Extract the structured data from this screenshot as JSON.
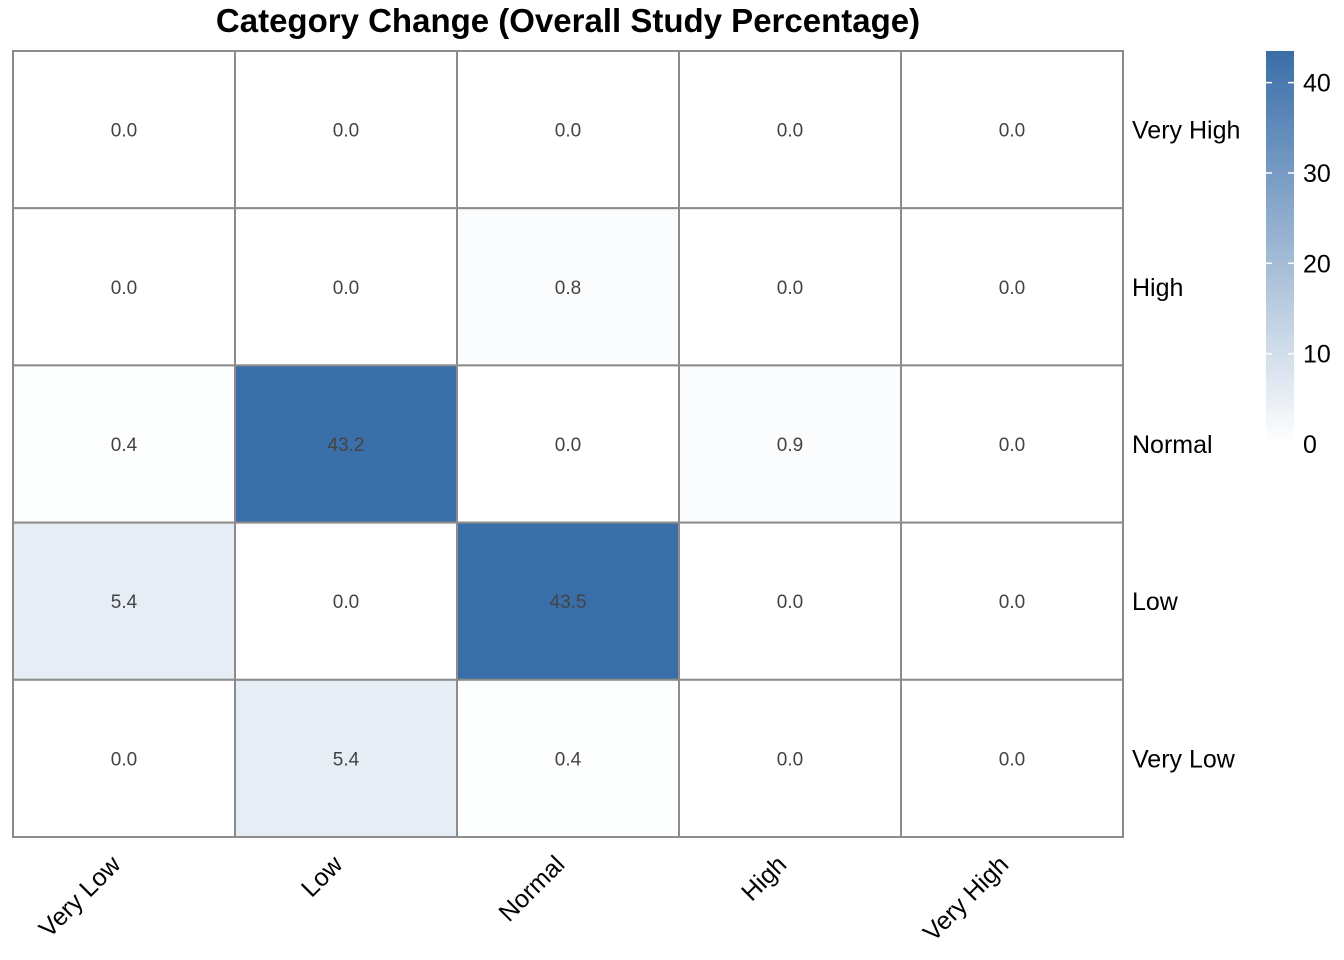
{
  "chart_data": {
    "type": "heatmap",
    "title": "Category Change (Overall Study Percentage)",
    "x_categories": [
      "Very Low",
      "Low",
      "Normal",
      "High",
      "Very High"
    ],
    "y_categories": [
      "Very High",
      "High",
      "Normal",
      "Low",
      "Very Low"
    ],
    "values": [
      [
        0.0,
        0.0,
        0.0,
        0.0,
        0.0
      ],
      [
        0.0,
        0.0,
        0.8,
        0.0,
        0.0
      ],
      [
        0.4,
        43.2,
        0.0,
        0.9,
        0.0
      ],
      [
        5.4,
        0.0,
        43.5,
        0.0,
        0.0
      ],
      [
        0.0,
        5.4,
        0.4,
        0.0,
        0.0
      ]
    ],
    "value_labels": [
      [
        "0.0",
        "0.0",
        "0.0",
        "0.0",
        "0.0"
      ],
      [
        "0.0",
        "0.0",
        "0.8",
        "0.0",
        "0.0"
      ],
      [
        "0.4",
        "43.2",
        "0.0",
        "0.9",
        "0.0"
      ],
      [
        "5.4",
        "0.0",
        "43.5",
        "0.0",
        "0.0"
      ],
      [
        "0.0",
        "5.4",
        "0.4",
        "0.0",
        "0.0"
      ]
    ],
    "color_scale": {
      "min": 0,
      "max": 43.5,
      "low_color": "#ffffff",
      "high_color": "#3a6ea8"
    },
    "legend_ticks": [
      0,
      10,
      20,
      30,
      40
    ],
    "grid_color": "#8c8c8c",
    "legend_position": "right"
  }
}
